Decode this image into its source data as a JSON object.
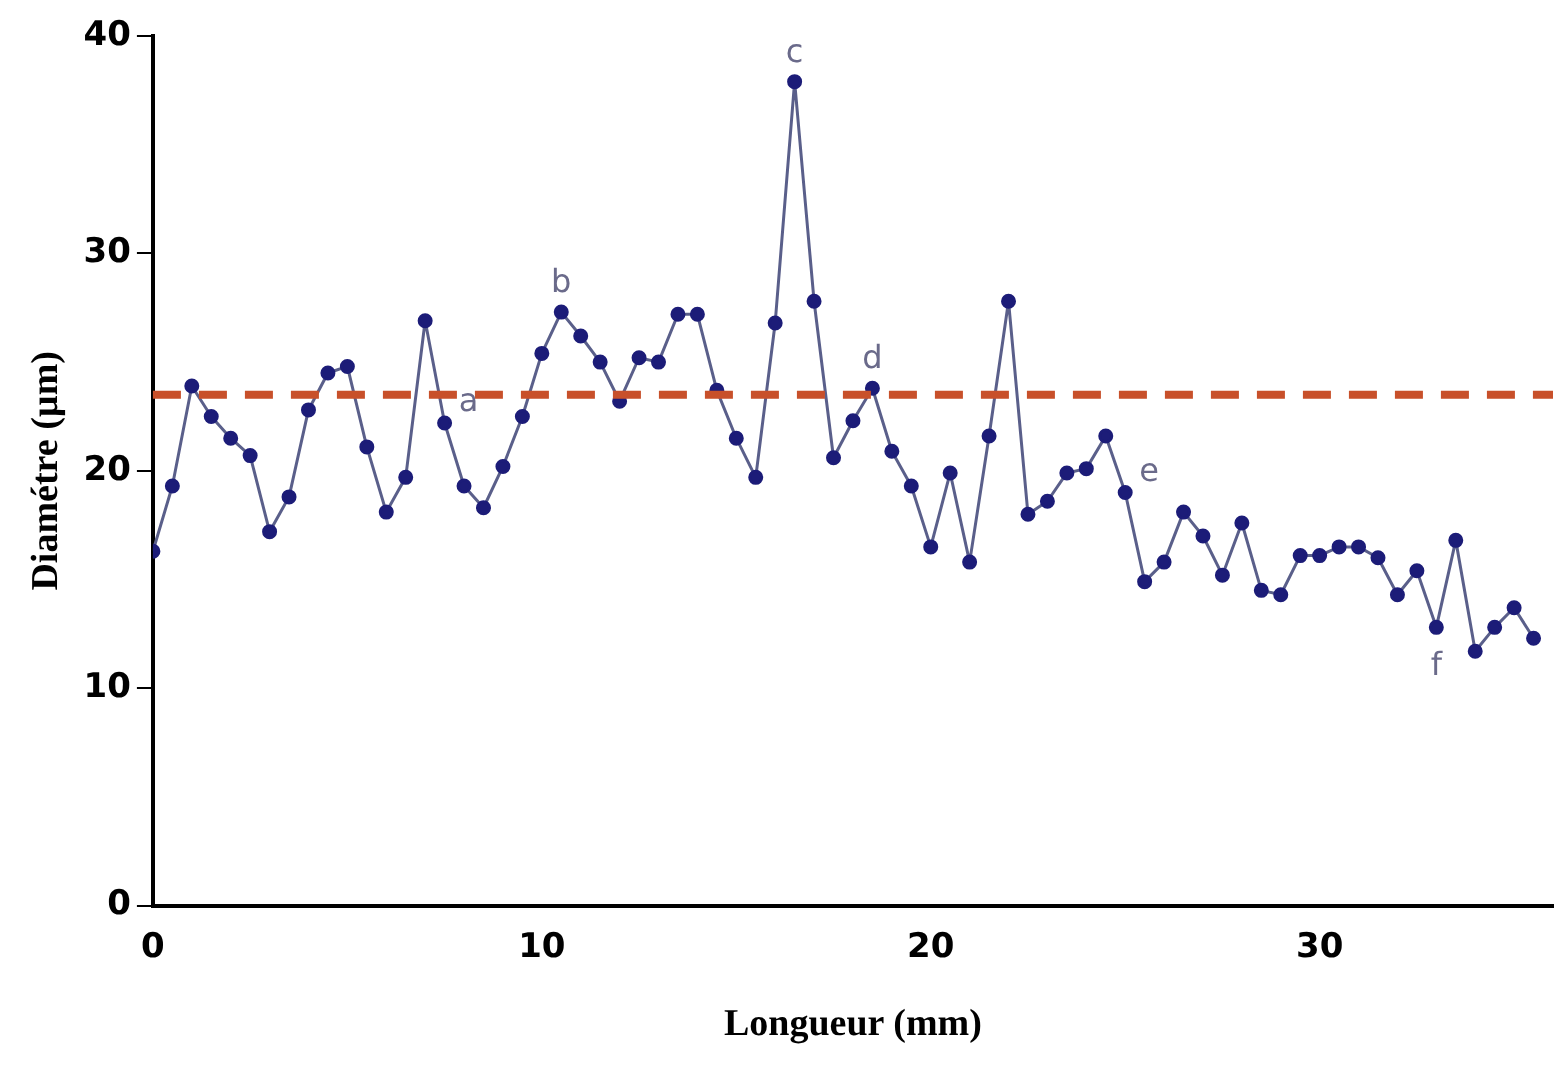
{
  "chart_data": {
    "type": "line",
    "xlabel": "Longueur (mm)",
    "ylabel": "Diamétre (µm)",
    "x": [
      0,
      0.5,
      1,
      1.5,
      2,
      2.5,
      3,
      3.5,
      4,
      4.5,
      5,
      5.5,
      6,
      6.5,
      7,
      7.5,
      8,
      8.5,
      9,
      9.5,
      10,
      10.5,
      11,
      11.5,
      12,
      12.5,
      13,
      13.5,
      14,
      14.5,
      15,
      15.5,
      16,
      16.5,
      17,
      17.5,
      18,
      18.5,
      19,
      19.5,
      20,
      20.5,
      21,
      21.5,
      22,
      22.5,
      23,
      23.5,
      24,
      24.5,
      25,
      25.5,
      26,
      26.5,
      27,
      27.5,
      28,
      28.5,
      29,
      29.5,
      30,
      30.5,
      31,
      31.5,
      32,
      32.5,
      33,
      33.5,
      34,
      34.5,
      35,
      35.5
    ],
    "series": [
      {
        "color": "#1c1c78",
        "values": [
          16.3,
          19.3,
          23.9,
          22.5,
          21.5,
          20.7,
          17.2,
          18.8,
          22.8,
          24.5,
          24.8,
          21.1,
          18.1,
          19.7,
          26.9,
          22.2,
          19.3,
          18.3,
          20.2,
          22.5,
          25.4,
          27.3,
          26.2,
          25.0,
          23.2,
          25.2,
          25.0,
          27.2,
          27.2,
          23.7,
          21.5,
          19.7,
          26.8,
          37.9,
          27.8,
          20.6,
          22.3,
          23.8,
          20.9,
          19.3,
          16.5,
          19.9,
          15.8,
          21.6,
          27.8,
          18.0,
          18.6,
          19.9,
          20.1,
          21.6,
          19.0,
          14.9,
          15.8,
          18.1,
          17.0,
          15.2,
          17.6,
          14.5,
          14.3,
          16.1,
          16.1,
          16.5,
          16.5,
          16.0,
          14.3,
          15.4,
          12.8,
          16.8,
          11.7,
          12.8,
          13.7,
          12.3
        ]
      }
    ],
    "xlim": [
      0,
      36
    ],
    "xticks": [
      0,
      10,
      20,
      30
    ],
    "ylim": [
      0,
      40
    ],
    "yticks": [
      0,
      10,
      20,
      30,
      40
    ],
    "grid": false,
    "legend": false,
    "marker": "circle",
    "line_style": "solid",
    "ref_lines": [
      {
        "axis": "y",
        "value": 23.5,
        "color": "#c8502a",
        "line_style": "dashed"
      }
    ],
    "annotations": [
      {
        "text": "a",
        "x": 7.5,
        "y": 22.2
      },
      {
        "text": "b",
        "x": 10.5,
        "y": 27.3
      },
      {
        "text": "c",
        "x": 16.5,
        "y": 37.9
      },
      {
        "text": "d",
        "x": 18.5,
        "y": 23.8
      },
      {
        "text": "e",
        "x": 25,
        "y": 19.0
      },
      {
        "text": "f",
        "x": 33,
        "y": 12.8
      }
    ]
  }
}
